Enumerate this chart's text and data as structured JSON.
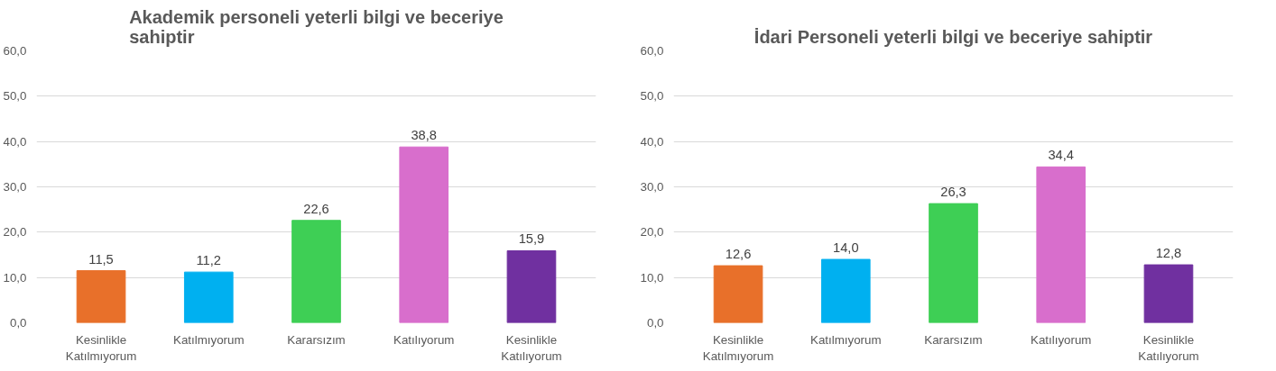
{
  "chart_data": [
    {
      "type": "bar",
      "title": "Akademik personeli yeterli bilgi ve beceriye sahiptir",
      "categories": [
        "Kesinlikle Katılmıyorum",
        "Katılmıyorum",
        "Kararsızım",
        "Katılıyorum",
        "Kesinlikle Katılıyorum"
      ],
      "values": [
        11.5,
        11.2,
        22.6,
        38.8,
        15.9
      ],
      "value_labels": [
        "11,5",
        "11,2",
        "22,6",
        "38,8",
        "15,9"
      ],
      "colors": [
        "#e8702a",
        "#00b0f0",
        "#3ecf55",
        "#d86ecc",
        "#7030a0"
      ],
      "ylim": [
        0,
        60
      ],
      "yticks": [
        {
          "value": 0,
          "label": "0,0"
        },
        {
          "value": 10,
          "label": "10,0"
        },
        {
          "value": 20,
          "label": "20,0"
        },
        {
          "value": 30,
          "label": "30,0"
        },
        {
          "value": 40,
          "label": "40,0"
        },
        {
          "value": 50,
          "label": "50,0"
        },
        {
          "value": 60,
          "label": "60,0"
        }
      ],
      "grid": "y"
    },
    {
      "type": "bar",
      "title": "İdari Personeli yeterli bilgi ve beceriye sahiptir",
      "categories": [
        "Kesinlikle Katılmıyorum",
        "Katılmıyorum",
        "Kararsızım",
        "Katılıyorum",
        "Kesinlikle Katılıyorum"
      ],
      "values": [
        12.6,
        14.0,
        26.3,
        34.4,
        12.8
      ],
      "value_labels": [
        "12,6",
        "14,0",
        "26,3",
        "34,4",
        "12,8"
      ],
      "colors": [
        "#e8702a",
        "#00b0f0",
        "#3ecf55",
        "#d86ecc",
        "#7030a0"
      ],
      "ylim": [
        0,
        60
      ],
      "yticks": [
        {
          "value": 0,
          "label": "0,0"
        },
        {
          "value": 10,
          "label": "10,0"
        },
        {
          "value": 20,
          "label": "20,0"
        },
        {
          "value": 30,
          "label": "30,0"
        },
        {
          "value": 40,
          "label": "40,0"
        },
        {
          "value": 50,
          "label": "50,0"
        },
        {
          "value": 60,
          "label": "60,0"
        }
      ],
      "grid": "y"
    }
  ]
}
